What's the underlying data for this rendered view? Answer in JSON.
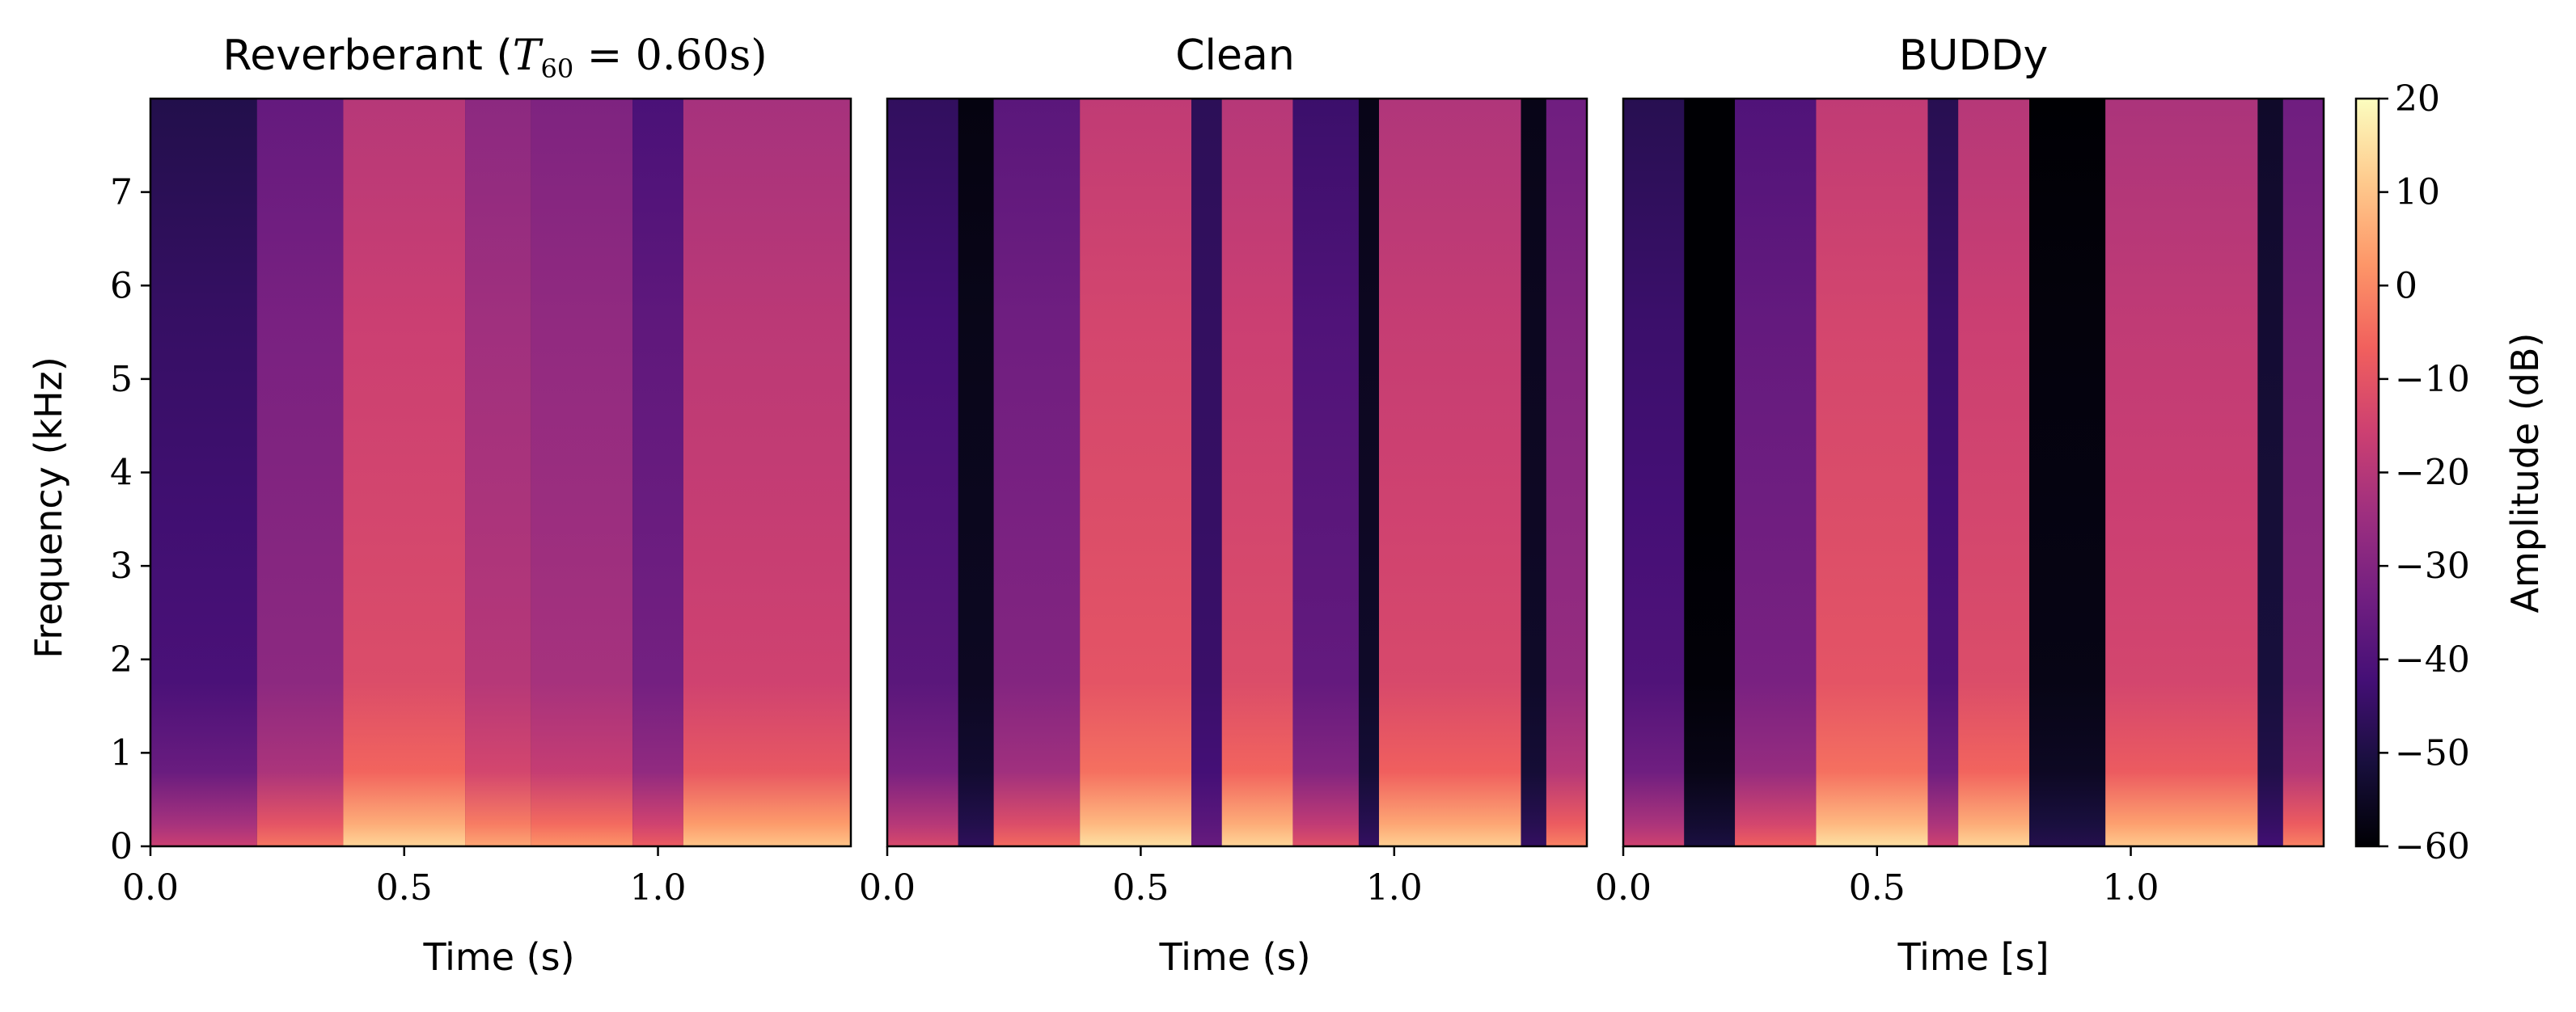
{
  "figure": {
    "colormap": "magma",
    "colormap_stops": [
      "#000004",
      "#180f3d",
      "#440f76",
      "#721f81",
      "#9e2f7f",
      "#cd4071",
      "#f1605d",
      "#fd9668",
      "#feca8d",
      "#fcfdbf"
    ]
  },
  "chart_data": [
    {
      "type": "heatmap",
      "title_prefix": "Reverberant (",
      "title_math": "T",
      "title_math_sub": "60",
      "title_math_rest": " = 0.60s)",
      "xlabel": "Time (s)",
      "ylabel": "Frequency (kHz)",
      "xlim": [
        0.0,
        1.38
      ],
      "ylim": [
        0,
        8
      ],
      "xticks": [
        0.0,
        0.5,
        1.0
      ],
      "xtick_labels": [
        "0.0",
        "0.5",
        "1.0"
      ],
      "yticks": [
        0,
        1,
        2,
        3,
        4,
        5,
        6,
        7
      ],
      "ytick_labels": [
        "0",
        "1",
        "2",
        "3",
        "4",
        "5",
        "6",
        "7"
      ],
      "segments": [
        {
          "t0": 0.0,
          "t1": 0.21,
          "level": -43
        },
        {
          "t0": 0.21,
          "t1": 0.38,
          "level": -30
        },
        {
          "t0": 0.38,
          "t1": 0.62,
          "level": -14
        },
        {
          "t0": 0.62,
          "t1": 0.75,
          "level": -22
        },
        {
          "t0": 0.75,
          "t1": 0.95,
          "level": -25
        },
        {
          "t0": 0.95,
          "t1": 1.05,
          "level": -35
        },
        {
          "t0": 1.05,
          "t1": 1.38,
          "level": -17
        }
      ]
    },
    {
      "type": "heatmap",
      "title": "Clean",
      "xlabel": "Time (s)",
      "xlim": [
        0.0,
        1.38
      ],
      "ylim": [
        0,
        8
      ],
      "xticks": [
        0.0,
        0.5,
        1.0
      ],
      "xtick_labels": [
        "0.0",
        "0.5",
        "1.0"
      ],
      "segments": [
        {
          "t0": 0.0,
          "t1": 0.14,
          "level": -40
        },
        {
          "t0": 0.14,
          "t1": 0.21,
          "level": -56
        },
        {
          "t0": 0.21,
          "t1": 0.38,
          "level": -32
        },
        {
          "t0": 0.38,
          "t1": 0.6,
          "level": -12
        },
        {
          "t0": 0.6,
          "t1": 0.66,
          "level": -45
        },
        {
          "t0": 0.66,
          "t1": 0.8,
          "level": -14
        },
        {
          "t0": 0.8,
          "t1": 0.93,
          "level": -38
        },
        {
          "t0": 0.93,
          "t1": 0.97,
          "level": -55
        },
        {
          "t0": 0.97,
          "t1": 1.25,
          "level": -15
        },
        {
          "t0": 1.25,
          "t1": 1.3,
          "level": -55
        },
        {
          "t0": 1.3,
          "t1": 1.38,
          "level": -28
        }
      ]
    },
    {
      "type": "heatmap",
      "title": "BUDDy",
      "xlabel": "Time [s]",
      "xlim": [
        0.0,
        1.38
      ],
      "ylim": [
        0,
        8
      ],
      "xticks": [
        0.0,
        0.5,
        1.0
      ],
      "xtick_labels": [
        "0.0",
        "0.5",
        "1.0"
      ],
      "segments": [
        {
          "t0": 0.0,
          "t1": 0.12,
          "level": -42
        },
        {
          "t0": 0.12,
          "t1": 0.22,
          "level": -60
        },
        {
          "t0": 0.22,
          "t1": 0.38,
          "level": -34
        },
        {
          "t0": 0.38,
          "t1": 0.6,
          "level": -12
        },
        {
          "t0": 0.6,
          "t1": 0.66,
          "level": -42
        },
        {
          "t0": 0.66,
          "t1": 0.8,
          "level": -14
        },
        {
          "t0": 0.8,
          "t1": 0.95,
          "level": -58
        },
        {
          "t0": 0.95,
          "t1": 1.25,
          "level": -16
        },
        {
          "t0": 1.25,
          "t1": 1.3,
          "level": -52
        },
        {
          "t0": 1.3,
          "t1": 1.38,
          "level": -28
        }
      ]
    }
  ],
  "colorbar": {
    "label": "Amplitude (dB)",
    "range": [
      -60,
      20
    ],
    "ticks": [
      20,
      10,
      0,
      -10,
      -20,
      -30,
      -40,
      -50,
      -60
    ],
    "tick_labels": [
      "20",
      "10",
      "0",
      "−10",
      "−20",
      "−30",
      "−40",
      "−50",
      "−60"
    ]
  }
}
